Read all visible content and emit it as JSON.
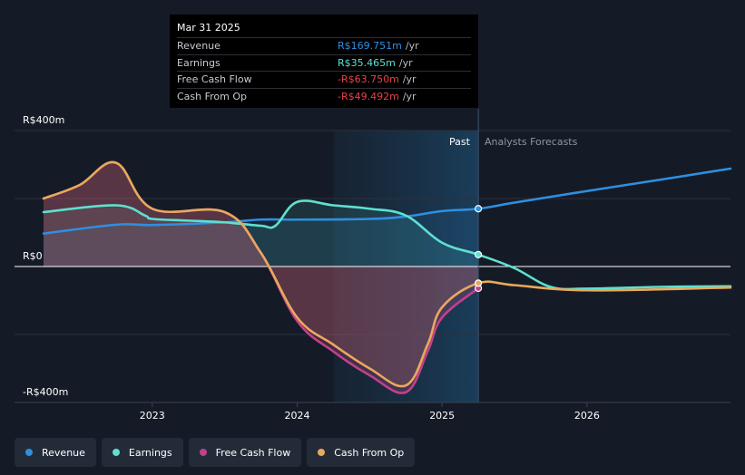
{
  "tooltip": {
    "date": "Mar 31 2025",
    "rows": [
      {
        "label": "Revenue",
        "value": "R$169.751m",
        "unit": "/yr",
        "color": "#2f8fe0"
      },
      {
        "label": "Earnings",
        "value": "R$35.465m",
        "unit": "/yr",
        "color": "#5ee0d0"
      },
      {
        "label": "Free Cash Flow",
        "value": "-R$63.750m",
        "unit": "/yr",
        "color": "#e4434b"
      },
      {
        "label": "Cash From Op",
        "value": "-R$49.492m",
        "unit": "/yr",
        "color": "#e4434b"
      }
    ]
  },
  "zones": {
    "past": "Past",
    "forecast": "Analysts Forecasts"
  },
  "legend": [
    {
      "label": "Revenue",
      "color": "#2f8fe0"
    },
    {
      "label": "Earnings",
      "color": "#5ee0d0"
    },
    {
      "label": "Free Cash Flow",
      "color": "#c2418a"
    },
    {
      "label": "Cash From Op",
      "color": "#e8a95c"
    }
  ],
  "chart_data": {
    "type": "line",
    "y_tick_labels": [
      "R$400m",
      "R$0",
      "-R$400m"
    ],
    "x_tick_labels": [
      "2023",
      "2024",
      "2025",
      "2026"
    ],
    "ylim": [
      -400,
      400
    ],
    "xlim": [
      2022.25,
      2026.99
    ],
    "forecast_start": 2025.25,
    "highlight_start": 2024.25,
    "series": [
      {
        "name": "Revenue",
        "color": "#2f8fe0",
        "forecast": true,
        "x": [
          2022.25,
          2022.75,
          2023.0,
          2023.5,
          2023.75,
          2024.0,
          2024.5,
          2024.75,
          2025.0,
          2025.25,
          2025.5,
          2026.0,
          2026.5,
          2026.99
        ],
        "y": [
          97,
          123,
          122,
          130,
          138,
          138,
          140,
          147,
          163,
          170,
          188,
          222,
          255,
          288
        ]
      },
      {
        "name": "Earnings",
        "color": "#5ee0d0",
        "forecast": true,
        "x": [
          2022.25,
          2022.75,
          2022.95,
          2023.0,
          2023.25,
          2023.5,
          2023.75,
          2023.85,
          2024.0,
          2024.25,
          2024.5,
          2024.75,
          2025.0,
          2025.25,
          2025.5,
          2025.75,
          2026.0,
          2026.5,
          2026.99
        ],
        "y": [
          160,
          180,
          150,
          140,
          135,
          130,
          120,
          120,
          190,
          180,
          170,
          150,
          70,
          35,
          -5,
          -60,
          -65,
          -60,
          -58
        ]
      },
      {
        "name": "Free Cash Flow",
        "color": "#c2418a",
        "forecast": false,
        "x": [
          2022.25,
          2022.5,
          2022.75,
          2023.0,
          2023.5,
          2023.75,
          2024.0,
          2024.25,
          2024.5,
          2024.75,
          2024.9,
          2025.0,
          2025.25
        ],
        "y": [
          200,
          240,
          305,
          170,
          160,
          40,
          -160,
          -250,
          -320,
          -370,
          -250,
          -150,
          -64
        ]
      },
      {
        "name": "Cash From Op",
        "color": "#e8a95c",
        "forecast": true,
        "x": [
          2022.25,
          2022.5,
          2022.75,
          2023.0,
          2023.5,
          2023.75,
          2024.0,
          2024.25,
          2024.5,
          2024.75,
          2024.9,
          2025.0,
          2025.25,
          2025.5,
          2026.0,
          2026.99
        ],
        "y": [
          200,
          240,
          305,
          170,
          160,
          40,
          -150,
          -230,
          -300,
          -350,
          -230,
          -120,
          -49,
          -55,
          -70,
          -62
        ]
      }
    ]
  }
}
